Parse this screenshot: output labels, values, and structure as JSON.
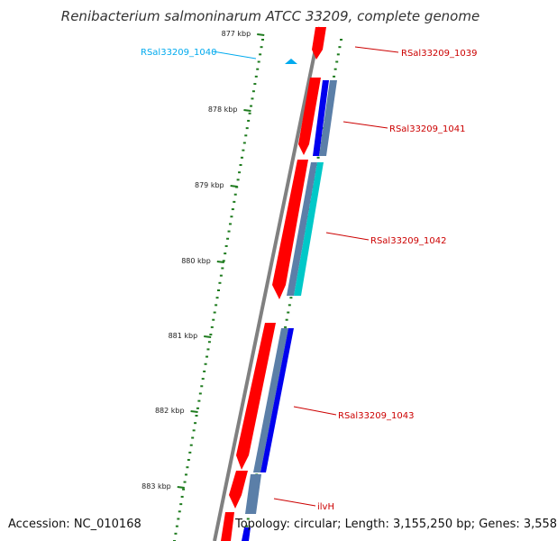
{
  "title": "Renibacterium salmoninarum ATCC 33209, complete genome",
  "accession": "Accession: NC_010168",
  "topology": "Topology: circular; Length: 3,155,250 bp; Genes: 3,558",
  "colors": {
    "backbone": "#808080",
    "tick": "#1e7b1e",
    "cds": "#ff0000",
    "blue": "#0000ee",
    "steel": "#5b7fa8",
    "cyan": "#00c8c8",
    "label_red": "#cc0000",
    "label_cyan": "#00aaee"
  },
  "scale_labels": [
    "877 kbp",
    "878 kbp",
    "879 kbp",
    "880 kbp",
    "881 kbp",
    "882 kbp",
    "883 kbp"
  ],
  "genes": [
    {
      "name": "RSal33209_1039",
      "color": "red"
    },
    {
      "name": "RSal33209_1040",
      "color": "cyan"
    },
    {
      "name": "RSal33209_1041",
      "color": "red"
    },
    {
      "name": "RSal33209_1042",
      "color": "red"
    },
    {
      "name": "RSal33209_1043",
      "color": "red"
    },
    {
      "name": "ilvH",
      "color": "red"
    }
  ]
}
